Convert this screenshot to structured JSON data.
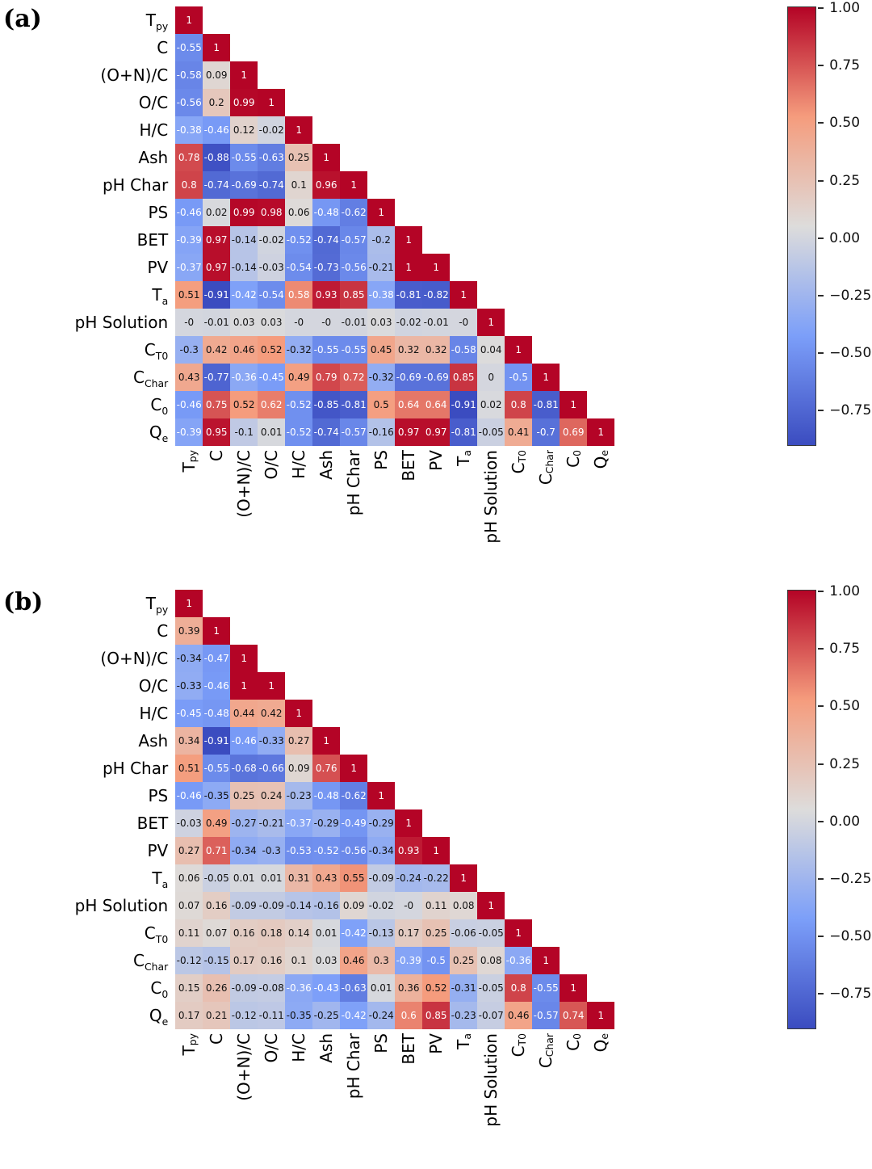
{
  "chart_data": [
    {
      "type": "heatmap",
      "panel_label": "(a)",
      "variables": [
        "T_py",
        "C",
        "(O+N)/C",
        "O/C",
        "H/C",
        "Ash",
        "pH Char",
        "PS",
        "BET",
        "PV",
        "T_a",
        "pH Solution",
        "C_T0",
        "C_Char",
        "C_0",
        "Q_e"
      ],
      "matrix_lower_triangle": [
        [
          "1"
        ],
        [
          "-0.55",
          "1"
        ],
        [
          "-0.58",
          "0.09",
          "1"
        ],
        [
          "-0.56",
          "0.2",
          "0.99",
          "1"
        ],
        [
          "-0.38",
          "-0.46",
          "0.12",
          "-0.02",
          "1"
        ],
        [
          "0.78",
          "-0.88",
          "-0.55",
          "-0.63",
          "0.25",
          "1"
        ],
        [
          "0.8",
          "-0.74",
          "-0.69",
          "-0.74",
          "0.1",
          "0.96",
          "1"
        ],
        [
          "-0.46",
          "0.02",
          "0.99",
          "0.98",
          "0.06",
          "-0.48",
          "-0.62",
          "1"
        ],
        [
          "-0.39",
          "0.97",
          "-0.14",
          "-0.02",
          "-0.52",
          "-0.74",
          "-0.57",
          "-0.2",
          "1"
        ],
        [
          "-0.37",
          "0.97",
          "-0.14",
          "-0.03",
          "-0.54",
          "-0.73",
          "-0.56",
          "-0.21",
          "1",
          "1"
        ],
        [
          "0.51",
          "-0.91",
          "-0.42",
          "-0.54",
          "0.58",
          "0.93",
          "0.85",
          "-0.38",
          "-0.81",
          "-0.82",
          "1"
        ],
        [
          "-0",
          "-0.01",
          "0.03",
          "0.03",
          "-0",
          "-0",
          "-0.01",
          "0.03",
          "-0.02",
          "-0.01",
          "-0",
          "1"
        ],
        [
          "-0.3",
          "0.42",
          "0.46",
          "0.52",
          "-0.32",
          "-0.55",
          "-0.55",
          "0.45",
          "0.32",
          "0.32",
          "-0.58",
          "0.04",
          "1"
        ],
        [
          "0.43",
          "-0.77",
          "-0.36",
          "-0.45",
          "0.49",
          "0.79",
          "0.72",
          "-0.32",
          "-0.69",
          "-0.69",
          "0.85",
          "0",
          "-0.5",
          "1"
        ],
        [
          "-0.46",
          "0.75",
          "0.52",
          "0.62",
          "-0.52",
          "-0.85",
          "-0.81",
          "0.5",
          "0.64",
          "0.64",
          "-0.91",
          "0.02",
          "0.8",
          "-0.81",
          "1"
        ],
        [
          "-0.39",
          "0.95",
          "-0.1",
          "0.01",
          "-0.52",
          "-0.74",
          "-0.57",
          "-0.16",
          "0.97",
          "0.97",
          "-0.81",
          "-0.05",
          "0.41",
          "-0.7",
          "0.69",
          "1"
        ]
      ],
      "vmin": -0.91,
      "vmax": 1.0,
      "colormap": "coolwarm",
      "colorbar_ticks": [
        {
          "label": "1.00",
          "value": 1.0
        },
        {
          "label": "0.75",
          "value": 0.75
        },
        {
          "label": "0.50",
          "value": 0.5
        },
        {
          "label": "0.25",
          "value": 0.25
        },
        {
          "label": "0.00",
          "value": 0.0
        },
        {
          "label": "−0.25",
          "value": -0.25
        },
        {
          "label": "−0.50",
          "value": -0.5
        },
        {
          "label": "−0.75",
          "value": -0.75
        }
      ]
    },
    {
      "type": "heatmap",
      "panel_label": "(b)",
      "variables": [
        "T_py",
        "C",
        "(O+N)/C",
        "O/C",
        "H/C",
        "Ash",
        "pH Char",
        "PS",
        "BET",
        "PV",
        "T_a",
        "pH Solution",
        "C_T0",
        "C_Char",
        "C_0",
        "Q_e"
      ],
      "matrix_lower_triangle": [
        [
          "1"
        ],
        [
          "0.39",
          "1"
        ],
        [
          "-0.34",
          "-0.47",
          "1"
        ],
        [
          "-0.33",
          "-0.46",
          "1",
          "1"
        ],
        [
          "-0.45",
          "-0.48",
          "0.44",
          "0.42",
          "1"
        ],
        [
          "0.34",
          "-0.91",
          "-0.46",
          "-0.33",
          "0.27",
          "1"
        ],
        [
          "0.51",
          "-0.55",
          "-0.68",
          "-0.66",
          "0.09",
          "0.76",
          "1"
        ],
        [
          "-0.46",
          "-0.35",
          "0.25",
          "0.24",
          "-0.23",
          "-0.48",
          "-0.62",
          "1"
        ],
        [
          "-0.03",
          "0.49",
          "-0.27",
          "-0.21",
          "-0.37",
          "-0.29",
          "-0.49",
          "-0.29",
          "1"
        ],
        [
          "0.27",
          "0.71",
          "-0.34",
          "-0.3",
          "-0.53",
          "-0.52",
          "-0.56",
          "-0.34",
          "0.93",
          "1"
        ],
        [
          "0.06",
          "-0.05",
          "0.01",
          "0.01",
          "0.31",
          "0.43",
          "0.55",
          "-0.09",
          "-0.24",
          "-0.22",
          "1"
        ],
        [
          "0.07",
          "0.16",
          "-0.09",
          "-0.09",
          "-0.14",
          "-0.16",
          "0.09",
          "-0.02",
          "-0",
          "0.11",
          "0.08",
          "1"
        ],
        [
          "0.11",
          "0.07",
          "0.16",
          "0.18",
          "0.14",
          "0.01",
          "-0.42",
          "-0.13",
          "0.17",
          "0.25",
          "-0.06",
          "-0.05",
          "1"
        ],
        [
          "-0.12",
          "-0.15",
          "0.17",
          "0.16",
          "0.1",
          "0.03",
          "0.46",
          "0.3",
          "-0.39",
          "-0.5",
          "0.25",
          "0.08",
          "-0.36",
          "1"
        ],
        [
          "0.15",
          "0.26",
          "-0.09",
          "-0.08",
          "-0.36",
          "-0.43",
          "-0.63",
          "0.01",
          "0.36",
          "0.52",
          "-0.31",
          "-0.05",
          "0.8",
          "-0.55",
          "1"
        ],
        [
          "0.17",
          "0.21",
          "-0.12",
          "-0.11",
          "-0.35",
          "-0.25",
          "-0.42",
          "-0.24",
          "0.6",
          "0.85",
          "-0.23",
          "-0.07",
          "0.46",
          "-0.57",
          "0.74",
          "1"
        ]
      ],
      "vmin": -0.91,
      "vmax": 1.0,
      "colormap": "coolwarm",
      "colorbar_ticks": [
        {
          "label": "1.00",
          "value": 1.0
        },
        {
          "label": "0.75",
          "value": 0.75
        },
        {
          "label": "0.50",
          "value": 0.5
        },
        {
          "label": "0.25",
          "value": 0.25
        },
        {
          "label": "0.00",
          "value": 0.0
        },
        {
          "label": "−0.25",
          "value": -0.25
        },
        {
          "label": "−0.50",
          "value": -0.5
        },
        {
          "label": "−0.75",
          "value": -0.75
        }
      ]
    }
  ],
  "style": {
    "background": "#FFFFFF",
    "colormap_anchors": [
      {
        "t": 0.0,
        "color": "#3B4CC0"
      },
      {
        "t": 0.25,
        "color": "#7C9FF9"
      },
      {
        "t": 0.5,
        "color": "#DDDCDB"
      },
      {
        "t": 0.75,
        "color": "#F59C7D"
      },
      {
        "t": 1.0,
        "color": "#B40426"
      }
    ],
    "cell_text_dark": "#111111",
    "cell_text_light": "#FFFFFF"
  }
}
